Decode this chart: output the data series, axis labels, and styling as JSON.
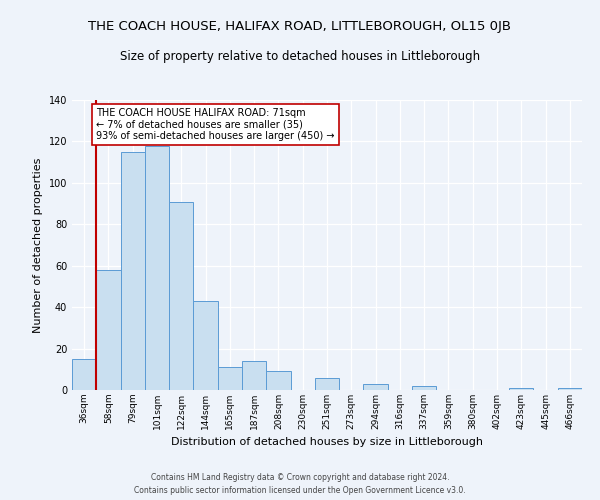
{
  "title": "THE COACH HOUSE, HALIFAX ROAD, LITTLEBOROUGH, OL15 0JB",
  "subtitle": "Size of property relative to detached houses in Littleborough",
  "xlabel": "Distribution of detached houses by size in Littleborough",
  "ylabel": "Number of detached properties",
  "bins": [
    "36sqm",
    "58sqm",
    "79sqm",
    "101sqm",
    "122sqm",
    "144sqm",
    "165sqm",
    "187sqm",
    "208sqm",
    "230sqm",
    "251sqm",
    "273sqm",
    "294sqm",
    "316sqm",
    "337sqm",
    "359sqm",
    "380sqm",
    "402sqm",
    "423sqm",
    "445sqm",
    "466sqm"
  ],
  "counts": [
    15,
    58,
    115,
    118,
    91,
    43,
    11,
    14,
    9,
    0,
    6,
    0,
    3,
    0,
    2,
    0,
    0,
    0,
    1,
    0,
    1
  ],
  "bar_color": "#c9dff0",
  "bar_edge_color": "#5b9bd5",
  "vline_color": "#c00000",
  "ylim": [
    0,
    140
  ],
  "yticks": [
    0,
    20,
    40,
    60,
    80,
    100,
    120,
    140
  ],
  "annotation_title": "THE COACH HOUSE HALIFAX ROAD: 71sqm",
  "annotation_line1": "← 7% of detached houses are smaller (35)",
  "annotation_line2": "93% of semi-detached houses are larger (450) →",
  "annotation_box_edge": "#c00000",
  "footer1": "Contains HM Land Registry data © Crown copyright and database right 2024.",
  "footer2": "Contains public sector information licensed under the Open Government Licence v3.0.",
  "background_color": "#eef3fa",
  "plot_bg_color": "#eef3fa",
  "grid_color": "#ffffff",
  "title_fontsize": 9.5,
  "subtitle_fontsize": 8.5,
  "xlabel_fontsize": 8,
  "ylabel_fontsize": 8
}
